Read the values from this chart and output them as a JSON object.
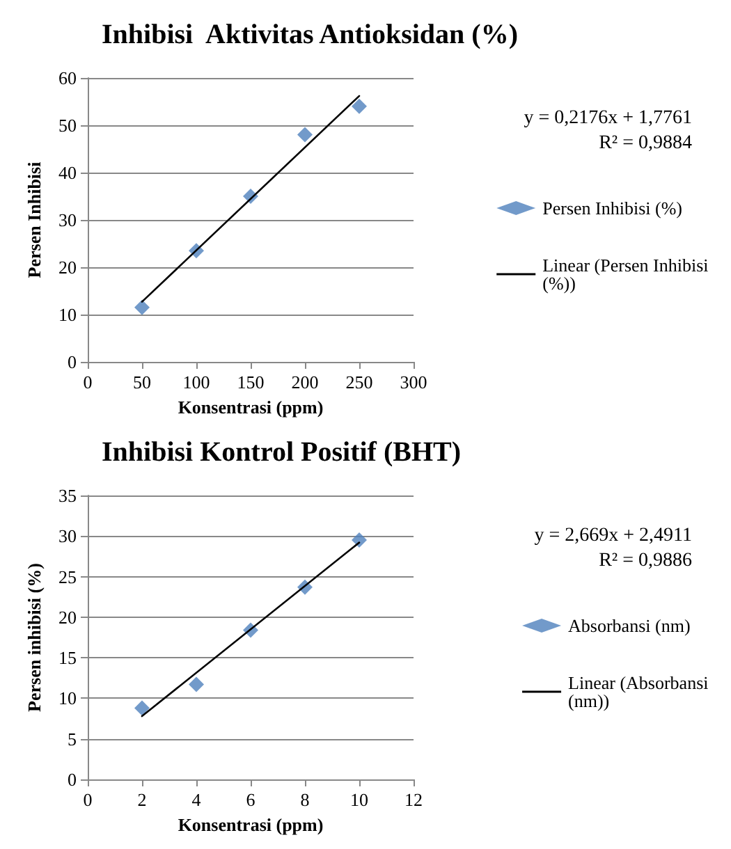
{
  "chart_data": [
    {
      "type": "scatter",
      "title": "Inhibisi  Aktivitas Antioksidan (%)",
      "xlabel": "Konsentrasi (ppm)",
      "ylabel": "Persen Inhibisi",
      "x": [
        50,
        100,
        150,
        200,
        250
      ],
      "xlim": [
        0,
        300
      ],
      "xticks": [
        0,
        50,
        100,
        150,
        200,
        250,
        300
      ],
      "ylim": [
        0,
        60
      ],
      "yticks": [
        0,
        10,
        20,
        30,
        40,
        50,
        60
      ],
      "grid": "y",
      "legend": "right",
      "annotations": [
        "y = 0,2176x + 1,7761",
        "R² = 0,9884"
      ],
      "series": [
        {
          "name": "Persen Inhibisi (%)",
          "marker": "diamond",
          "color": "#4f81bd",
          "values": [
            11.5,
            23.5,
            35,
            48,
            54
          ]
        },
        {
          "name": "Linear (Persen Inhibisi (%))",
          "type": "line",
          "marker": "none",
          "line_style": "solid",
          "color": "#000000",
          "x": [
            50,
            250
          ],
          "values": [
            12.7,
            56.2
          ]
        }
      ]
    },
    {
      "type": "scatter",
      "title": "Inhibisi Kontrol Positif (BHT)",
      "xlabel": "Konsentrasi (ppm)",
      "ylabel": "Persen inhibisi (%)",
      "x": [
        2,
        4,
        6,
        8,
        10
      ],
      "xlim": [
        0,
        12
      ],
      "xticks": [
        0,
        2,
        4,
        6,
        8,
        10,
        12
      ],
      "ylim": [
        0,
        35
      ],
      "yticks": [
        0,
        5,
        10,
        15,
        20,
        25,
        30,
        35
      ],
      "grid": "y",
      "legend": "right",
      "annotations": [
        "y = 2,669x + 2,4911",
        "R² = 0,9886"
      ],
      "series": [
        {
          "name": "Absorbansi (nm)",
          "marker": "diamond",
          "color": "#4f81bd",
          "values": [
            8.8,
            11.7,
            18.4,
            23.7,
            29.5
          ]
        },
        {
          "name": "Linear (Absorbansi (nm))",
          "type": "line",
          "marker": "none",
          "line_style": "solid",
          "color": "#000000",
          "x": [
            2,
            10
          ],
          "values": [
            7.8,
            29.2
          ]
        }
      ]
    }
  ]
}
